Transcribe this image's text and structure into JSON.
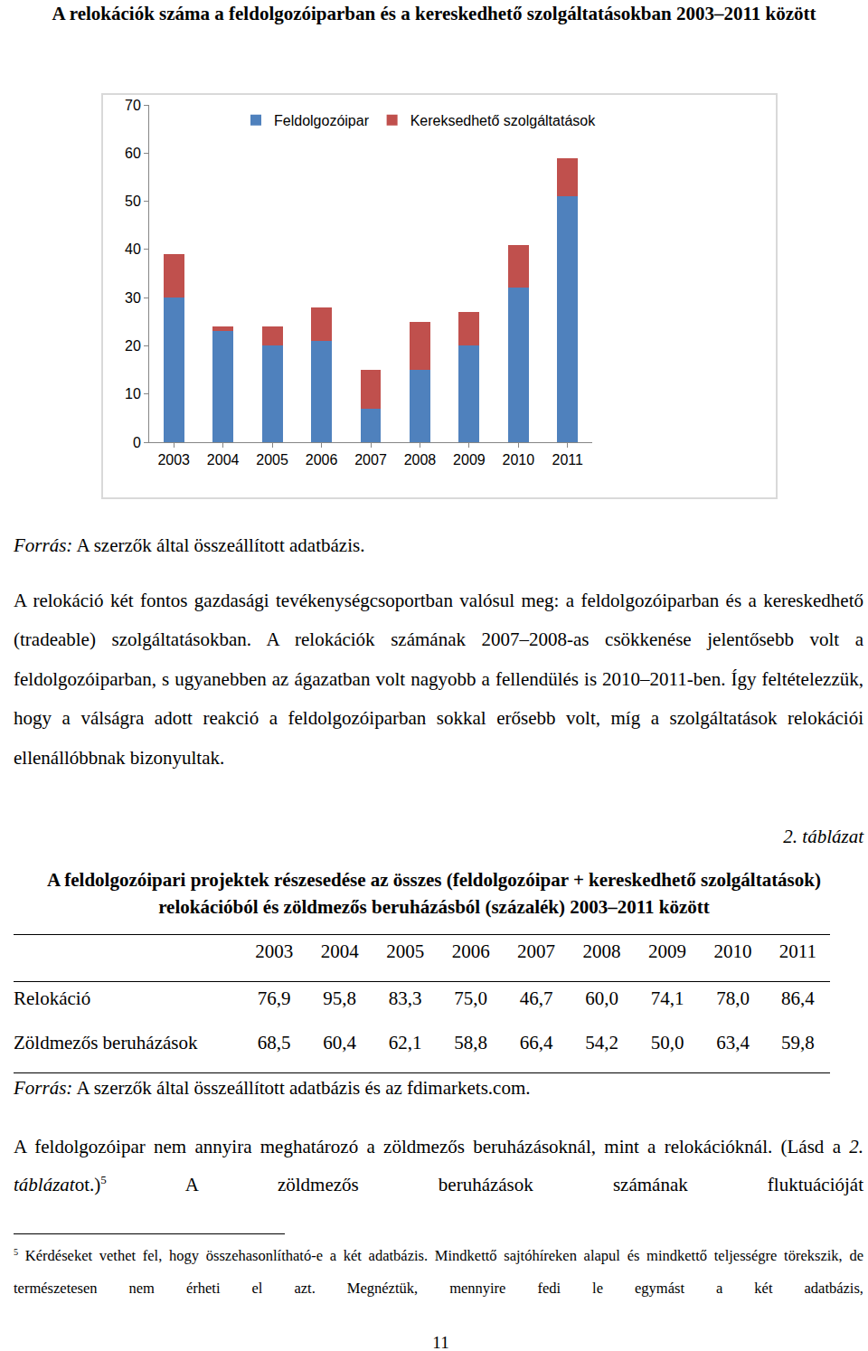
{
  "title": "A relokációk száma a feldolgozóiparban és a kereskedhető szolgáltatásokban 2003–2011 között",
  "chart_data": {
    "type": "bar",
    "stacked": true,
    "grid": false,
    "legend": "top",
    "categories": [
      "2003",
      "2004",
      "2005",
      "2006",
      "2007",
      "2008",
      "2009",
      "2010",
      "2011"
    ],
    "series": [
      {
        "name": "Feldolgozóipar",
        "color": "#4f81bd",
        "values": [
          30,
          23,
          20,
          21,
          7,
          15,
          20,
          32,
          51
        ]
      },
      {
        "name": "Kereksedhető szolgáltatások",
        "color": "#c0504d",
        "values": [
          9,
          1,
          4,
          7,
          8,
          10,
          7,
          9,
          8
        ]
      }
    ],
    "ylim": [
      0,
      70
    ],
    "yticks": [
      0,
      10,
      20,
      30,
      40,
      50,
      60,
      70
    ]
  },
  "chart_source": {
    "label": "Forrás:",
    "text": "A szerzők által összeállított adatbázis."
  },
  "paragraph_1": "A relokáció két fontos gazdasági tevékenységcsoportban valósul meg: a feldolgozóiparban és a kereskedhető (tradeable) szolgáltatásokban. A relokációk számának 2007–2008-as csökkenése jelentősebb volt a feldolgozóiparban, s ugyanebben az ágazatban volt nagyobb a fellendülés is 2010–2011-ben. Így feltételezzük, hogy a válságra adott reakció a feldolgozóiparban sokkal erősebb volt, míg a szolgáltatások relokációi ellenállóbbnak bizonyultak.",
  "table_number": "2. táblázat",
  "table_title": "A feldolgozóipari projektek részesedése az összes (feldolgozóipar + kereskedhető szolgáltatások) relokációból és zöldmezős beruházásból (százalék) 2003–2011 között",
  "table": {
    "header": [
      "2003",
      "2004",
      "2005",
      "2006",
      "2007",
      "2008",
      "2009",
      "2010",
      "2011"
    ],
    "rows": [
      [
        "Relokáció",
        "76,9",
        "95,8",
        "83,3",
        "75,0",
        "46,7",
        "60,0",
        "74,1",
        "78,0",
        "86,4"
      ],
      [
        "Zöldmezős beruházások",
        "68,5",
        "60,4",
        "62,1",
        "58,8",
        "66,4",
        "54,2",
        "50,0",
        "63,4",
        "59,8"
      ]
    ]
  },
  "table_source": {
    "label": "Forrás:",
    "text": "A szerzők által összeállított adatbázis és az fdimarkets.com."
  },
  "paragraph_2": [
    {
      "text": "A feldolgozóipar nem annyira meghatározó a zöldmezős beruházásoknál, mint a relokációknál. (Lásd a "
    },
    {
      "text": "2. táblázat",
      "style": "italic"
    },
    {
      "text": "ot.)"
    },
    {
      "text": "5",
      "style": "superscript"
    },
    {
      "text": " A zöldmezős beruházások számának fluktuációját"
    }
  ],
  "footnote": {
    "mark": "5",
    "text": "Kérdéseket vethet fel, hogy összehasonlítható-e a két adatbázis. Mindkettő sajtóhíreken alapul és mindkettő teljességre törekszik, de természetesen nem érheti el azt. Megnéztük, mennyire fedi le egymást a két adatbázis,"
  },
  "page_number": "11"
}
